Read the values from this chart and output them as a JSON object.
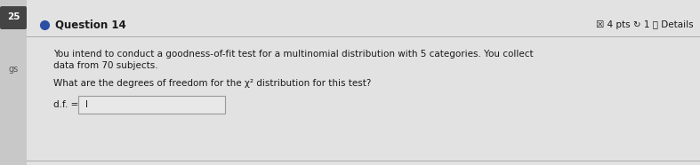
{
  "bg_color": "#e8e8e8",
  "main_bg": "#d8d8d8",
  "content_bg": "#e4e4e4",
  "sidebar_bg": "#d0d0d0",
  "sidebar_number": "25",
  "sidebar_gs": "gs",
  "question_number": "Question 14",
  "question_dot_color": "#2c4fa3",
  "header_text": "☒ 4 pts ↻ 1 ⓘ Details",
  "body_line1": "You intend to conduct a goodness-of-fit test for a multinomial distribution with 5 categories. You collect",
  "body_line2": "data from 70 subjects.",
  "question_line": "What are the degrees of freedom for the χ² distribution for this test?",
  "answer_label": "d.f. =",
  "text_color": "#1a1a1a",
  "divider_color": "#aaaaaa",
  "input_bg": "#e8e8e8",
  "input_border": "#999999",
  "font_size_body": 7.5,
  "font_size_header": 7.5,
  "font_size_question": 8.5,
  "font_size_sidebar": 8.0
}
